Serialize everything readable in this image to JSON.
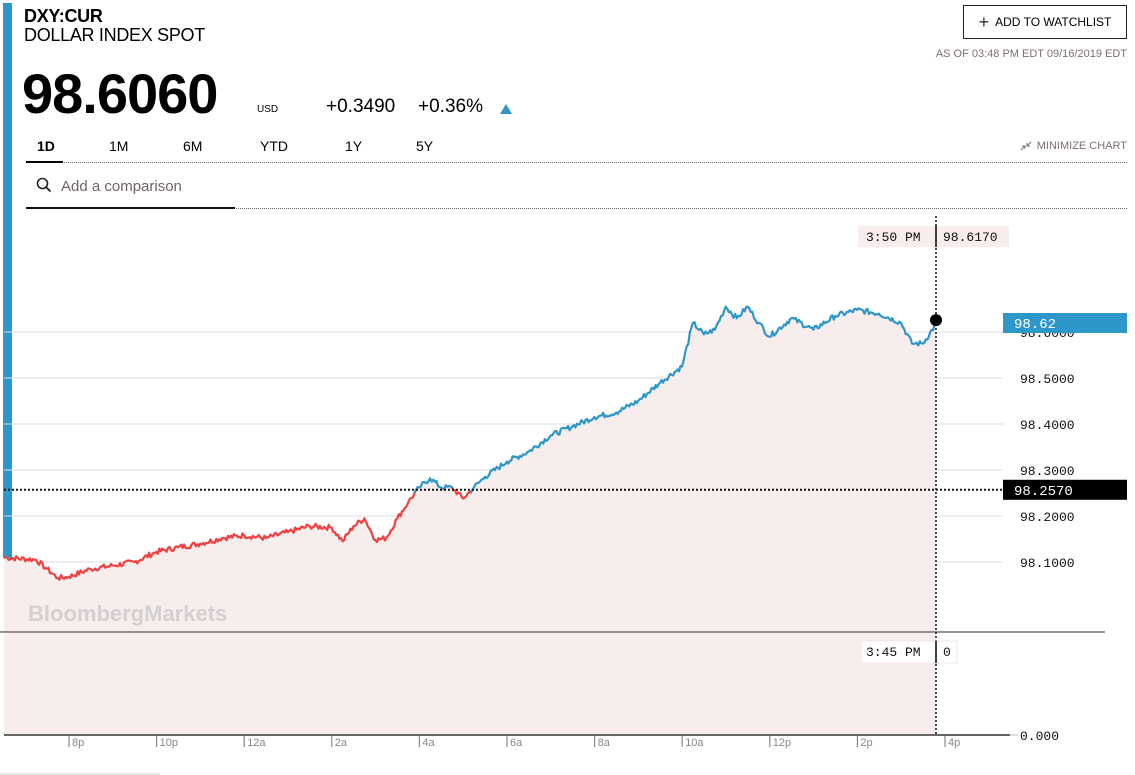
{
  "header": {
    "ticker": "DXY:CUR",
    "name": "DOLLAR INDEX SPOT",
    "price": "98.6060",
    "currency": "USD",
    "change": "+0.3490",
    "change_pct": "+0.36%",
    "direction": "up",
    "watchlist_button": "ADD TO WATCHLIST",
    "as_of": "AS OF 03:48 PM EDT 09/16/2019 EDT"
  },
  "range_tabs": [
    {
      "label": "1D",
      "active": true
    },
    {
      "label": "1M",
      "active": false
    },
    {
      "label": "6M",
      "active": false
    },
    {
      "label": "YTD",
      "active": false
    },
    {
      "label": "1Y",
      "active": false
    },
    {
      "label": "5Y",
      "active": false
    }
  ],
  "minimize_label": "MINIMIZE CHART",
  "comparison": {
    "placeholder": "Add a comparison",
    "value": ""
  },
  "watermark": "BloombergMarkets",
  "tooltips": {
    "price_time": "3:50 PM",
    "price_value": "98.6170",
    "volume_time": "3:45 PM",
    "volume_value": "0",
    "last_price_tag": "98.62",
    "prev_close_tag": "98.2570"
  },
  "colors": {
    "accent": "#2e97c9",
    "above_prev_close": "#2e97c9",
    "below_prev_close": "#f04040",
    "area_fill": "#f7eded",
    "prev_close_tag_bg": "#000000"
  },
  "chart_data": {
    "type": "line",
    "title": "DXY:CUR Dollar Index Spot — 1D",
    "xlabel": "",
    "ylabel": "",
    "x_ticks": [
      "8p",
      "10p",
      "12a",
      "2a",
      "4a",
      "6a",
      "8a",
      "10a",
      "12p",
      "2p",
      "4p"
    ],
    "y_ticks": [
      "98.6000",
      "98.5000",
      "98.4000",
      "98.3000",
      "98.2000",
      "98.1000"
    ],
    "ylim": [
      98.02,
      98.68
    ],
    "volume_axis_label": "0.000",
    "previous_close": 98.257,
    "last_value": 98.617,
    "last_time": "3:50 PM",
    "grid": true,
    "series": [
      {
        "name": "DXY:CUR",
        "x": [
          "7:00p",
          "7:15p",
          "7:30p",
          "7:45p",
          "8:00p",
          "8:30p",
          "9:00p",
          "9:30p",
          "10:00p",
          "10:30p",
          "11:00p",
          "11:30p",
          "12:00a",
          "12:30a",
          "1:00a",
          "1:30a",
          "2:00a",
          "2:15a",
          "2:30a",
          "2:45a",
          "3:00a",
          "3:15a",
          "3:30a",
          "3:45a",
          "4:00a",
          "4:15a",
          "4:30a",
          "4:45a",
          "5:00a",
          "5:15a",
          "5:30a",
          "6:00a",
          "6:30a",
          "7:00a",
          "7:30a",
          "8:00a",
          "8:30a",
          "9:00a",
          "9:30a",
          "10:00a",
          "10:15a",
          "10:30a",
          "10:45a",
          "11:00a",
          "11:15a",
          "11:30a",
          "11:45a",
          "12:00p",
          "12:30p",
          "1:00p",
          "1:30p",
          "2:00p",
          "2:30p",
          "3:00p",
          "3:15p",
          "3:30p",
          "3:50p"
        ],
        "values": [
          98.11,
          98.105,
          98.085,
          98.065,
          98.068,
          98.085,
          98.092,
          98.1,
          98.122,
          98.132,
          98.14,
          98.152,
          98.158,
          98.152,
          98.165,
          98.178,
          98.175,
          98.145,
          98.178,
          98.195,
          98.148,
          98.152,
          98.195,
          98.23,
          98.262,
          98.282,
          98.262,
          98.262,
          98.238,
          98.262,
          98.285,
          98.318,
          98.34,
          98.375,
          98.395,
          98.415,
          98.425,
          98.45,
          98.49,
          98.525,
          98.62,
          98.595,
          98.605,
          98.655,
          98.63,
          98.655,
          98.62,
          98.59,
          98.63,
          98.605,
          98.635,
          98.648,
          98.64,
          98.62,
          98.575,
          98.575,
          98.617
        ]
      }
    ]
  }
}
